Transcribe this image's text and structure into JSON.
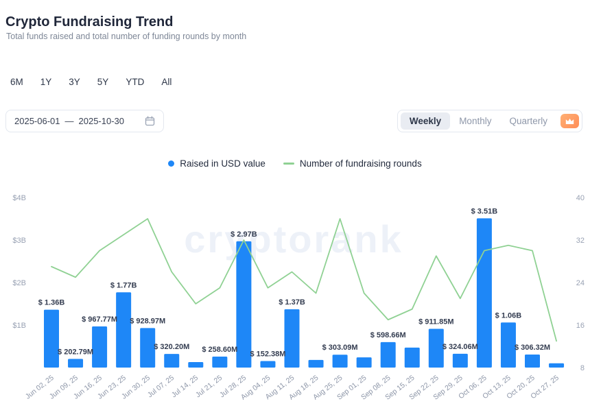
{
  "header": {
    "title": "Crypto Fundraising Trend",
    "subtitle": "Total funds raised and total number of funding rounds by month"
  },
  "range_buttons": [
    "6M",
    "1Y",
    "3Y",
    "5Y",
    "YTD",
    "All"
  ],
  "date_range": {
    "start": "2025-06-01",
    "separator": "—",
    "end": "2025-10-30"
  },
  "granularity": {
    "options": [
      "Weekly",
      "Monthly",
      "Quarterly"
    ],
    "selected": "Weekly"
  },
  "legend": [
    {
      "label": "Raised in USD value",
      "color": "#1e87f7",
      "marker": "dot"
    },
    {
      "label": "Number of fundraising rounds",
      "color": "#8fd193",
      "marker": "line"
    }
  ],
  "watermark": "cryptorank",
  "chart_data": {
    "type": "bar+line",
    "categories": [
      "Jun 02, 25",
      "Jun 09, 25",
      "Jun 16, 25",
      "Jun 23, 25",
      "Jun 30, 25",
      "Jul 07, 25",
      "Jul 14, 25",
      "Jul 21, 25",
      "Jul 28, 25",
      "Aug 04, 25",
      "Aug 11, 25",
      "Aug 18, 25",
      "Aug 25, 25",
      "Sep 01, 25",
      "Sep 08, 25",
      "Sep 15, 25",
      "Sep 22, 25",
      "Sep 29, 25",
      "Oct 06, 25",
      "Oct 13, 25",
      "Oct 20, 25",
      "Oct 27, 25"
    ],
    "series": [
      {
        "name": "Raised in USD value",
        "type": "bar",
        "color": "#1e87f7",
        "values_usd_billions": [
          1.36,
          0.20279,
          0.96777,
          1.77,
          0.92897,
          0.3202,
          0.13,
          0.2586,
          2.97,
          0.15238,
          1.37,
          0.18,
          0.30309,
          0.24,
          0.59866,
          0.47,
          0.91185,
          0.32406,
          3.51,
          1.06,
          0.30632,
          0.1
        ],
        "labels": [
          "$ 1.36B",
          "$ 202.79M",
          "$ 967.77M",
          "$ 1.77B",
          "$ 928.97M",
          "$ 320.20M",
          null,
          "$ 258.60M",
          "$ 2.97B",
          "$ 152.38M",
          "$ 1.37B",
          null,
          "$ 303.09M",
          null,
          "$ 598.66M",
          null,
          "$ 911.85M",
          "$ 324.06M",
          "$ 3.51B",
          "$ 1.06B",
          "$ 306.32M",
          null
        ]
      },
      {
        "name": "Number of fundraising rounds",
        "type": "line",
        "color": "#8fd193",
        "values": [
          27,
          25,
          30,
          33,
          36,
          26,
          20,
          23,
          32,
          23,
          26,
          22,
          36,
          22,
          17,
          19,
          29,
          21,
          30,
          31,
          30,
          13
        ]
      }
    ],
    "left_axis": {
      "ticks": [
        "$4B",
        "$3B",
        "$2B",
        "$1B"
      ],
      "max_billions": 4
    },
    "right_axis": {
      "ticks": [
        40,
        32,
        24,
        16,
        8
      ],
      "min": 8,
      "max": 40
    },
    "grid": false,
    "legend_position": "top-center"
  }
}
